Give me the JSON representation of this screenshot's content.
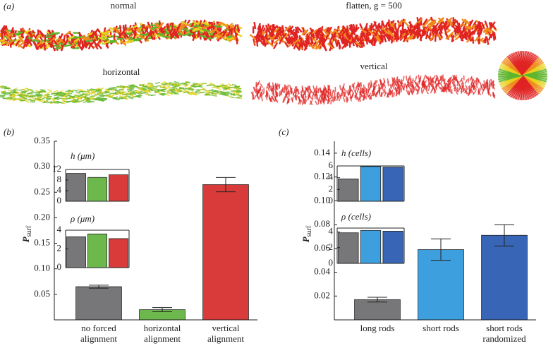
{
  "panel_a": {
    "label": "(a)",
    "strips": [
      {
        "title": "normal"
      },
      {
        "title": "flatten, g = 500"
      },
      {
        "title": "horizontal"
      },
      {
        "title": "vertical"
      }
    ]
  },
  "chart_data": [
    {
      "type": "bar",
      "panel_label": "(b)",
      "y_label": "P",
      "y_label_sub": "surf",
      "categories": [
        "no forced alignment",
        "horizontal alignment",
        "vertical alignment"
      ],
      "values": [
        0.065,
        0.02,
        0.265
      ],
      "errors": [
        0.003,
        0.004,
        0.014
      ],
      "colors": [
        "#77777a",
        "#6cb84c",
        "#d93a3a"
      ],
      "ylim": [
        0,
        0.35
      ],
      "yticks": [
        0.05,
        {
          "value": 0.1,
          "label": "0.10"
        },
        0.15,
        {
          "value": 0.2,
          "label": "0.20"
        },
        0.25,
        {
          "value": 0.3,
          "label": "0.30"
        },
        0.35
      ]
    },
    {
      "type": "bar",
      "title": "h (μm)",
      "values": [
        10.5,
        9,
        10
      ],
      "colors": [
        "#77777a",
        "#6cb84c",
        "#d93a3a"
      ],
      "ylim": [
        0,
        12
      ],
      "yticks": [
        0,
        4,
        8,
        12
      ]
    },
    {
      "type": "bar",
      "title": "ρ (μm)",
      "values": [
        3.3,
        3.6,
        3.1
      ],
      "colors": [
        "#77777a",
        "#6cb84c",
        "#d93a3a"
      ],
      "ylim": [
        0,
        4
      ],
      "yticks": [
        0,
        2,
        4
      ]
    },
    {
      "type": "bar",
      "panel_label": "(c)",
      "y_label": "P",
      "y_label_sub": "surf",
      "categories": [
        "long rods",
        "short rods",
        "short rods randomized"
      ],
      "values": [
        0.017,
        0.059,
        0.071
      ],
      "errors": [
        0.002,
        0.009,
        0.009
      ],
      "colors": [
        "#77777a",
        "#3d9fde",
        "#3865b5"
      ],
      "ylim": [
        0,
        0.15
      ],
      "yticks": [
        0.02,
        0.04,
        0.06,
        0.08,
        {
          "value": 0.1,
          "label": "0.10"
        },
        0.12,
        0.14
      ]
    },
    {
      "type": "bar",
      "title": "h (cells)",
      "values": [
        3.8,
        5.9,
        5.8
      ],
      "colors": [
        "#77777a",
        "#3d9fde",
        "#3865b5"
      ],
      "ylim": [
        0,
        6
      ],
      "yticks": [
        0,
        2,
        4,
        6
      ]
    },
    {
      "type": "bar",
      "title": "ρ (cells)",
      "values": [
        3.9,
        4.2,
        4.1
      ],
      "colors": [
        "#77777a",
        "#3d9fde",
        "#3865b5"
      ],
      "ylim": [
        0,
        4.5
      ],
      "yticks": [
        0,
        2,
        4
      ]
    }
  ]
}
